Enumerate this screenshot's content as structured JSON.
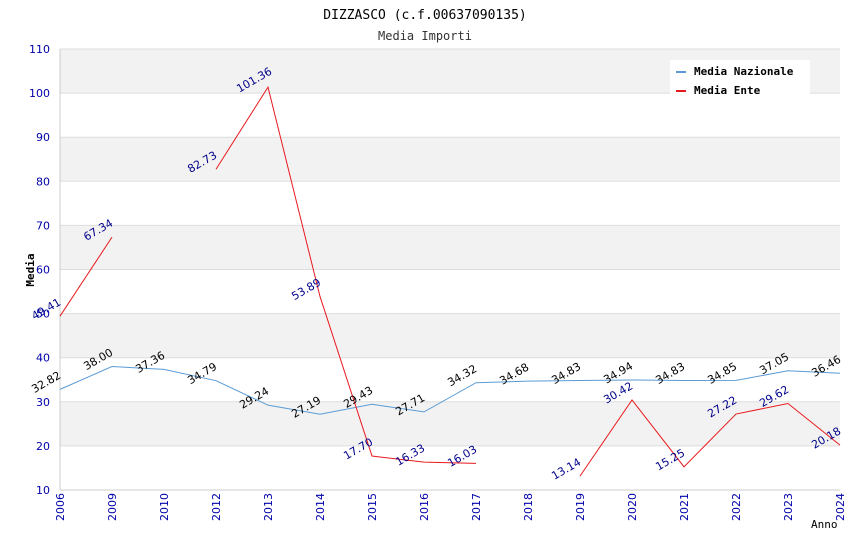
{
  "chart_data": {
    "type": "line",
    "title": "DIZZASCO (c.f.00637090135)",
    "subtitle": "Media Importi",
    "xlabel": "Anno",
    "ylabel": "Media",
    "ylim": [
      10,
      110
    ],
    "yticks": [
      10,
      20,
      30,
      40,
      50,
      60,
      70,
      80,
      90,
      100,
      110
    ],
    "grid": true,
    "legend_position": "top-right",
    "categories": [
      "2006",
      "2009",
      "2010",
      "2012",
      "2013",
      "2014",
      "2015",
      "2016",
      "2017",
      "2018",
      "2019",
      "2020",
      "2021",
      "2022",
      "2023",
      "2024"
    ],
    "series": [
      {
        "name": "Media Nazionale",
        "color": "#5b9bd5",
        "label_color": "#000000",
        "values": [
          32.82,
          38.0,
          37.36,
          34.79,
          29.24,
          27.19,
          29.43,
          27.71,
          34.32,
          34.68,
          34.83,
          34.94,
          34.83,
          34.85,
          37.05,
          36.46
        ],
        "labels": [
          "32.82",
          "38.00",
          "37.36",
          "34.79",
          "29.24",
          "27.19",
          "29.43",
          "27.71",
          "34.32",
          "34.68",
          "34.83",
          "34.94",
          "34.83",
          "34.85",
          "37.05",
          "36.46"
        ]
      },
      {
        "name": "Media Ente",
        "color": "#e8191e",
        "label_color": "#00008b",
        "values": [
          49.41,
          67.34,
          null,
          82.73,
          101.36,
          53.89,
          17.7,
          16.33,
          16.03,
          null,
          13.14,
          30.42,
          15.25,
          27.22,
          29.62,
          20.18
        ],
        "labels": [
          "49.41",
          "67.34",
          null,
          "82.73",
          "101.36",
          "53.89",
          "17.70",
          "16.33",
          "16.03",
          null,
          "13.14",
          "30.42",
          "15.25",
          "27.22",
          "29.62",
          "20.18"
        ]
      }
    ]
  }
}
